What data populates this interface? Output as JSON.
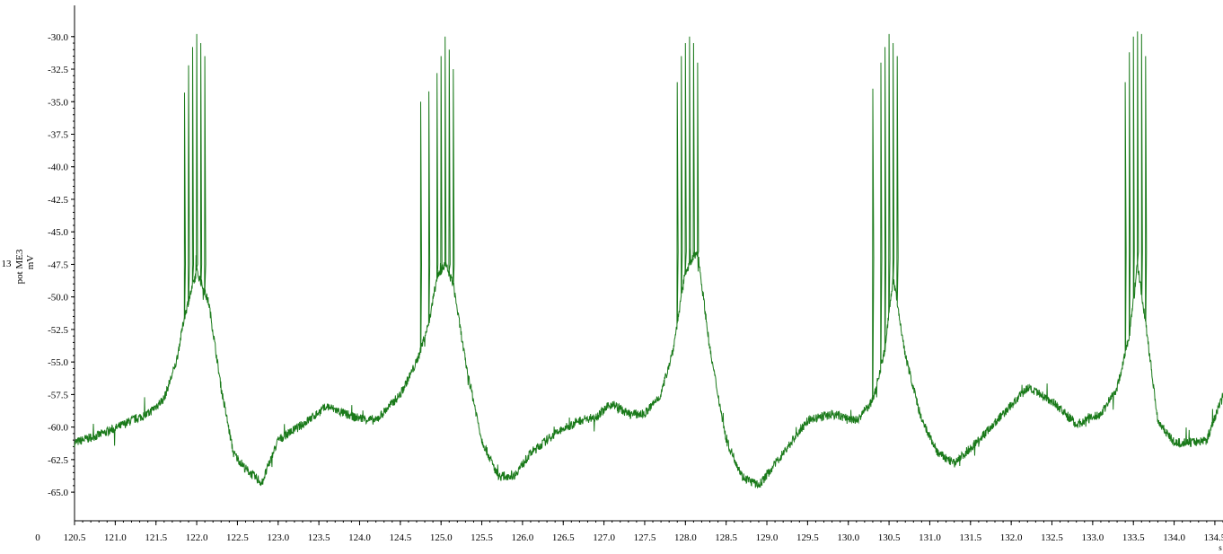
{
  "chart_data": {
    "type": "line",
    "ylabel_line1": "13",
    "ylabel_line2": "pot ME3",
    "ylabel_unit": "mV",
    "xunit": "s",
    "origin_label": "0",
    "grid": false,
    "legend": "none",
    "xlim": [
      120.5,
      134.6
    ],
    "ylim": [
      -67.2,
      -27.6
    ],
    "xticks": [
      120.5,
      121.0,
      121.5,
      122.0,
      122.5,
      123.0,
      123.5,
      124.0,
      124.5,
      125.0,
      125.5,
      126.0,
      126.5,
      127.0,
      127.5,
      128.0,
      128.5,
      129.0,
      129.5,
      130.0,
      130.5,
      131.0,
      131.5,
      132.0,
      132.5,
      133.0,
      133.5,
      134.0,
      134.5
    ],
    "xtick_labels": [
      "120.5",
      "121.0",
      "121.5",
      "122.0",
      "122.5",
      "123.0",
      "123.5",
      "124.0",
      "124.5",
      "125.0",
      "125.5",
      "126.0",
      "126.5",
      "127.0",
      "127.5",
      "128.0",
      "128.5",
      "129.0",
      "129.5",
      "130.0",
      "130.5",
      "131.0",
      "131.5",
      "132.0",
      "132.5",
      "133.0",
      "133.5",
      "134.0",
      "134.5"
    ],
    "yticks": [
      -30.0,
      -32.5,
      -35.0,
      -37.5,
      -40.0,
      -42.5,
      -45.0,
      -47.5,
      -50.0,
      -52.5,
      -55.0,
      -57.5,
      -60.0,
      -62.5,
      -65.0
    ],
    "ytick_labels": [
      "-30.0",
      "-32.5",
      "-35.0",
      "-37.5",
      "-40.0",
      "-42.5",
      "-45.0",
      "-47.5",
      "-50.0",
      "-52.5",
      "-55.0",
      "-57.5",
      "-60.0",
      "-62.5",
      "-65.0"
    ],
    "series": [
      {
        "color": "#1a7a1a",
        "baseline": {
          "x": [
            120.5,
            120.8,
            121.0,
            121.2,
            121.4,
            121.6,
            121.75,
            121.85,
            122.0,
            122.15,
            122.3,
            122.45,
            122.6,
            122.8,
            123.0,
            123.3,
            123.6,
            123.9,
            124.2,
            124.5,
            124.7,
            124.85,
            124.95,
            125.05,
            125.15,
            125.3,
            125.5,
            125.7,
            125.9,
            126.1,
            126.4,
            126.7,
            126.9,
            127.1,
            127.3,
            127.5,
            127.7,
            127.85,
            128.0,
            128.15,
            128.3,
            128.5,
            128.7,
            128.9,
            129.2,
            129.5,
            129.8,
            130.1,
            130.3,
            130.45,
            130.55,
            130.7,
            130.9,
            131.1,
            131.3,
            131.6,
            131.9,
            132.2,
            132.5,
            132.8,
            133.1,
            133.3,
            133.45,
            133.55,
            133.65,
            133.8,
            134.0,
            134.2,
            134.4,
            134.6
          ],
          "y": [
            -61.2,
            -60.6,
            -60.1,
            -59.5,
            -59.0,
            -57.8,
            -55.0,
            -51.5,
            -48.0,
            -50.5,
            -57.0,
            -62.0,
            -63.2,
            -64.3,
            -61.0,
            -59.8,
            -58.4,
            -59.2,
            -59.5,
            -57.5,
            -55.0,
            -52.0,
            -48.5,
            -47.5,
            -49.0,
            -55.0,
            -61.0,
            -63.8,
            -63.7,
            -62.0,
            -60.5,
            -59.5,
            -59.2,
            -58.2,
            -59.0,
            -59.0,
            -57.5,
            -54.0,
            -48.0,
            -46.5,
            -54.0,
            -61.0,
            -63.8,
            -64.5,
            -62.0,
            -59.5,
            -59.0,
            -59.5,
            -58.0,
            -54.0,
            -48.5,
            -54.5,
            -59.5,
            -62.0,
            -62.8,
            -61.0,
            -59.0,
            -57.0,
            -58.0,
            -59.8,
            -59.0,
            -57.0,
            -53.0,
            -47.5,
            -52.0,
            -59.5,
            -61.2,
            -61.2,
            -61.0,
            -57.5
          ]
        },
        "bursts": [
          {
            "spikes_x": [
              121.85,
              121.9,
              121.95,
              122.0,
              122.05,
              122.1
            ],
            "spikes_peak": [
              -34.3,
              -32.2,
              -30.8,
              -29.8,
              -30.5,
              -31.5
            ],
            "spike_base": -47.5
          },
          {
            "spikes_x": [
              124.75,
              124.85,
              124.95,
              125.0,
              125.05,
              125.1,
              125.15
            ],
            "spikes_peak": [
              -35.0,
              -34.2,
              -32.8,
              -31.5,
              -30.0,
              -31.0,
              -32.5
            ],
            "spike_base": -47.5
          },
          {
            "spikes_x": [
              127.9,
              127.95,
              128.0,
              128.05,
              128.1,
              128.15
            ],
            "spikes_peak": [
              -33.5,
              -31.5,
              -30.5,
              -30.0,
              -30.5,
              -32.0
            ],
            "spike_base": -46.5
          },
          {
            "spikes_x": [
              130.3,
              130.4,
              130.45,
              130.5,
              130.55,
              130.6
            ],
            "spikes_peak": [
              -34.0,
              -32.0,
              -30.8,
              -29.8,
              -30.5,
              -31.5
            ],
            "spike_base": -47.0
          },
          {
            "spikes_x": [
              133.4,
              133.45,
              133.5,
              133.55,
              133.6,
              133.65
            ],
            "spikes_peak": [
              -33.5,
              -31.2,
              -30.0,
              -29.6,
              -29.8,
              -31.5
            ],
            "spike_base": -46.5
          }
        ]
      }
    ]
  }
}
